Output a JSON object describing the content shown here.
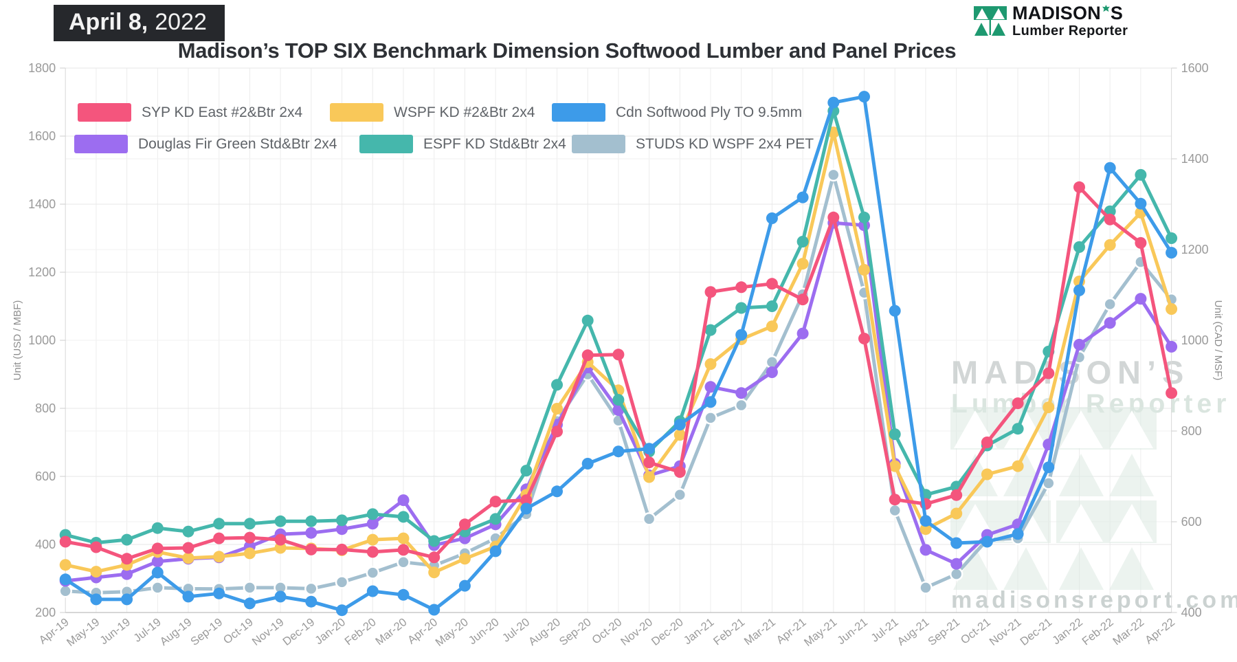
{
  "header": {
    "date_line": "April 8,",
    "date_year": "2022",
    "title": "Madison’s TOP SIX Benchmark Dimension Softwood Lumber and Panel Prices",
    "logo": {
      "name_part": "MADISON",
      "name_suffix": "S",
      "subtitle": "Lumber Reporter"
    }
  },
  "watermark": {
    "line1": "MADISON’S",
    "line2": "Lumber Reporter",
    "url": "madisonsreport.com"
  },
  "chart_data": {
    "type": "line",
    "title": "Madison’s TOP SIX Benchmark Dimension Softwood Lumber and Panel Prices",
    "grid": true,
    "legend_position": "top-left",
    "x_categories": [
      "Apr-19",
      "May-19",
      "Jun-19",
      "Jul-19",
      "Aug-19",
      "Sep-19",
      "Oct-19",
      "Nov-19",
      "Dec-19",
      "Jan-20",
      "Feb-20",
      "Mar-20",
      "Apr-20",
      "May-20",
      "Jun-20",
      "Jul-20",
      "Aug-20",
      "Sep-20",
      "Oct-20",
      "Nov-20",
      "Dec-20",
      "Jan-21",
      "Feb-21",
      "Mar-21",
      "Apr-21",
      "May-21",
      "Jun-21",
      "Jul-21",
      "Aug-21",
      "Sep-21",
      "Oct-21",
      "Nov-21",
      "Dec-21",
      "Jan-22",
      "Feb-22",
      "Mar-22",
      "Apr-22"
    ],
    "left_axis": {
      "label": "Unit (USD / MBF)",
      "min": 200,
      "max": 1800,
      "step": 200,
      "ticks": [
        "1800",
        "1600",
        "1400",
        "1200",
        "1000",
        "800",
        "600",
        "400",
        "200"
      ]
    },
    "right_axis": {
      "label": "Unit (CAD / MSF)",
      "min": 400,
      "max": 1600,
      "step": 200,
      "ticks": [
        "1600",
        "1400",
        "1200",
        "1000",
        "800",
        "600",
        "400"
      ]
    },
    "series": [
      {
        "name": "SYP KD East #2&Btr 2x4",
        "color": "#F4557D",
        "axis": "left",
        "values": [
          408,
          392,
          358,
          388,
          390,
          418,
          420,
          414,
          385,
          385,
          378,
          384,
          362,
          459,
          526,
          530,
          732,
          956,
          958,
          641,
          613,
          1142,
          1156,
          1166,
          1120,
          1361,
          1005,
          532,
          519,
          545,
          700,
          815,
          903,
          1450,
          1355,
          1286,
          845
        ]
      },
      {
        "name": "WSPF KD #2&Btr 2x4",
        "color": "#F9C859",
        "axis": "left",
        "values": [
          340,
          320,
          340,
          378,
          360,
          364,
          374,
          390,
          388,
          383,
          414,
          418,
          318,
          358,
          394,
          546,
          799,
          936,
          853,
          598,
          722,
          930,
          1003,
          1041,
          1225,
          1611,
          1207,
          630,
          445,
          491,
          606,
          630,
          803,
          1173,
          1280,
          1375,
          1092
        ]
      },
      {
        "name": "Cdn Softwood Ply TO 9.5mm",
        "color": "#3D9BE9",
        "axis": "right",
        "values": [
          473,
          429,
          429,
          488,
          435,
          442,
          420,
          435,
          424,
          405,
          447,
          439,
          406,
          459,
          535,
          629,
          667,
          728,
          755,
          761,
          814,
          864,
          1012,
          1269,
          1315,
          1524,
          1537,
          1065,
          602,
          553,
          556,
          573,
          720,
          1110,
          1380,
          1301,
          1193
        ]
      },
      {
        "name": "Douglas Fir Green Std&Btr 2x4",
        "color": "#9C6DF0",
        "axis": "left",
        "values": [
          293,
          303,
          313,
          350,
          358,
          362,
          394,
          430,
          434,
          445,
          461,
          530,
          398,
          418,
          459,
          562,
          752,
          920,
          795,
          603,
          630,
          863,
          845,
          906,
          1020,
          1345,
          1338,
          637,
          384,
          343,
          428,
          459,
          694,
          987,
          1051,
          1122,
          981
        ]
      },
      {
        "name": "ESPF KD Std&Btr 2x4",
        "color": "#45B7AC",
        "axis": "left",
        "values": [
          428,
          405,
          414,
          448,
          438,
          461,
          461,
          468,
          468,
          471,
          489,
          481,
          410,
          438,
          475,
          617,
          869,
          1058,
          825,
          673,
          762,
          1030,
          1095,
          1100,
          1290,
          1674,
          1361,
          724,
          546,
          570,
          691,
          740,
          967,
          1274,
          1379,
          1486,
          1300
        ]
      },
      {
        "name": "STUDS KD WSPF 2x4 PET",
        "color": "#A3BFCF",
        "axis": "left",
        "marker_stroke": "#FFFFFF",
        "values": [
          263,
          258,
          261,
          273,
          270,
          269,
          273,
          273,
          270,
          289,
          317,
          348,
          338,
          374,
          418,
          489,
          762,
          900,
          764,
          475,
          546,
          772,
          809,
          936,
          1135,
          1486,
          1140,
          500,
          273,
          313,
          414,
          418,
          580,
          950,
          1106,
          1230,
          1120
        ]
      }
    ]
  }
}
